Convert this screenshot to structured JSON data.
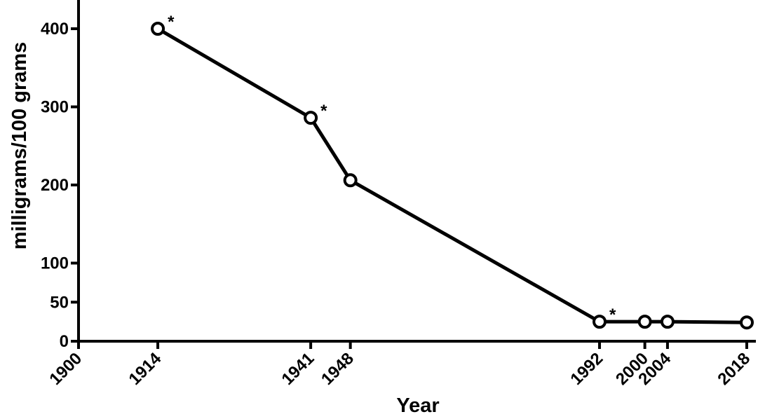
{
  "chart_data": {
    "type": "line",
    "title": "",
    "xlabel": "Year",
    "ylabel": "milligrams/100 grams",
    "x_ticks": [
      "1900",
      "1914",
      "1941",
      "1948",
      "1992",
      "2000",
      "2004",
      "2018"
    ],
    "y_ticks": [
      "0",
      "50",
      "100",
      "200",
      "300",
      "400"
    ],
    "xlim": [
      1900,
      2018
    ],
    "ylim": [
      0,
      400
    ],
    "grid": false,
    "legend": "none",
    "series": [
      {
        "x": [
          1914,
          1941,
          1948,
          1992,
          2000,
          2004,
          2018
        ],
        "y": [
          400,
          286,
          206,
          25,
          25,
          25,
          24
        ],
        "marker": "open-circle",
        "color": "#000000"
      }
    ],
    "annotations": [
      {
        "x": 1914,
        "y": 400,
        "text": "*"
      },
      {
        "x": 1941,
        "y": 286,
        "text": "*"
      },
      {
        "x": 1992,
        "y": 25,
        "text": "*"
      }
    ]
  }
}
